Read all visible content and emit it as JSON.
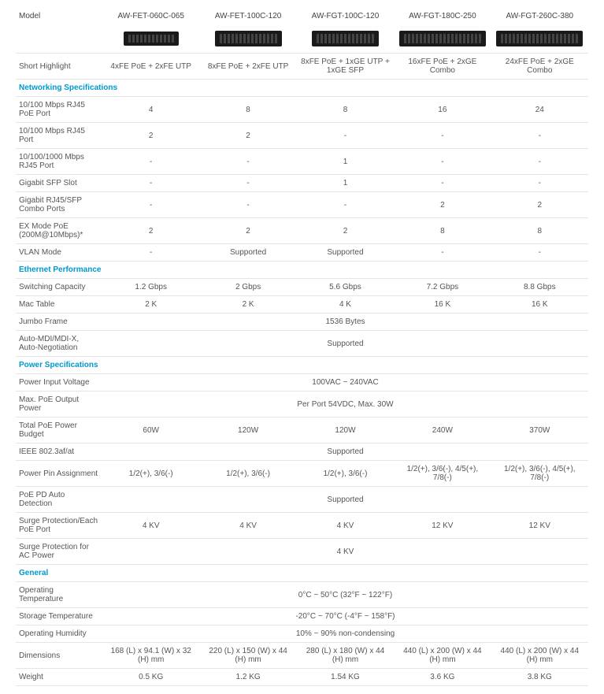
{
  "header": {
    "model_label": "Model",
    "models": [
      "AW-FET-060C-065",
      "AW-FET-100C-120",
      "AW-FGT-100C-120",
      "AW-FGT-180C-250",
      "AW-FGT-260C-380"
    ],
    "switch_sizes": [
      "sz-small",
      "sz-medium",
      "sz-medium",
      "sz-large",
      "sz-large"
    ]
  },
  "short_highlight": {
    "label": "Short Highlight",
    "values": [
      "4xFE PoE + 2xFE UTP",
      "8xFE PoE + 2xFE UTP",
      "8xFE PoE + 1xGE UTP + 1xGE SFP",
      "16xFE PoE + 2xGE Combo",
      "24xFE PoE + 2xGE Combo"
    ]
  },
  "sections": [
    {
      "title": "Networking Specifications",
      "rows": [
        {
          "label": "10/100 Mbps RJ45 PoE Port",
          "values": [
            "4",
            "8",
            "8",
            "16",
            "24"
          ]
        },
        {
          "label": "10/100 Mbps RJ45 Port",
          "values": [
            "2",
            "2",
            "-",
            "-",
            "-"
          ]
        },
        {
          "label": "10/100/1000 Mbps RJ45 Port",
          "values": [
            "-",
            "-",
            "1",
            "-",
            "-"
          ]
        },
        {
          "label": "Gigabit SFP Slot",
          "values": [
            "-",
            "-",
            "1",
            "-",
            "-"
          ]
        },
        {
          "label": "Gigabit RJ45/SFP Combo Ports",
          "values": [
            "-",
            "-",
            "-",
            "2",
            "2"
          ]
        },
        {
          "label": "EX Mode PoE (200M@10Mbps)*",
          "values": [
            "2",
            "2",
            "2",
            "8",
            "8"
          ]
        },
        {
          "label": "VLAN Mode",
          "values": [
            "-",
            "Supported",
            "Supported",
            "-",
            "-"
          ]
        }
      ]
    },
    {
      "title": "Ethernet Performance",
      "rows": [
        {
          "label": "Switching Capacity",
          "values": [
            "1.2 Gbps",
            "2 Gbps",
            "5.6 Gbps",
            "7.2 Gbps",
            "8.8 Gbps"
          ]
        },
        {
          "label": "Mac Table",
          "values": [
            "2 K",
            "2 K",
            "4 K",
            "16 K",
            "16 K"
          ]
        },
        {
          "label": "Jumbo Frame",
          "span": "1536 Bytes"
        },
        {
          "label": "Auto-MDI/MDI-X, Auto-Negotiation",
          "span": "Supported"
        }
      ]
    },
    {
      "title": "Power Specifications",
      "rows": [
        {
          "label": "Power Input Voltage",
          "span": "100VAC ~ 240VAC"
        },
        {
          "label": "Max. PoE Output Power",
          "span": "Per Port 54VDC, Max. 30W"
        },
        {
          "label": "Total PoE Power Budget",
          "values": [
            "60W",
            "120W",
            "120W",
            "240W",
            "370W"
          ]
        },
        {
          "label": "IEEE 802.3af/at",
          "span": "Supported"
        },
        {
          "label": "Power Pin Assignment",
          "values": [
            "1/2(+), 3/6(-)",
            "1/2(+), 3/6(-)",
            "1/2(+), 3/6(-)",
            "1/2(+), 3/6(-), 4/5(+), 7/8(-)",
            "1/2(+), 3/6(-), 4/5(+), 7/8(-)"
          ]
        },
        {
          "label": "PoE PD Auto Detection",
          "span": "Supported"
        },
        {
          "label": "Surge Protection/Each PoE Port",
          "values": [
            "4 KV",
            "4 KV",
            "4 KV",
            "12 KV",
            "12 KV"
          ]
        },
        {
          "label": "Surge Protection for AC Power",
          "span": "4 KV"
        }
      ]
    },
    {
      "title": "General",
      "rows": [
        {
          "label": "Operating Temperature",
          "span": "0°C ~ 50°C (32°F ~ 122°F)"
        },
        {
          "label": "Storage Temperature",
          "span": "-20°C ~ 70°C (-4°F ~ 158°F)"
        },
        {
          "label": "Operating Humidity",
          "span": "10% ~ 90% non-condensing"
        },
        {
          "label": "Dimensions",
          "values": [
            "168 (L) x 94.1 (W) x 32 (H) mm",
            "220 (L) x 150 (W) x 44 (H) mm",
            "280 (L) x 180 (W) x 44 (H) mm",
            "440 (L) x 200 (W) x 44 (H) mm",
            "440 (L) x 200 (W) x 44 (H) mm"
          ]
        },
        {
          "label": "Weight",
          "values": [
            "0.5 KG",
            "1.2 KG",
            "1.54 KG",
            "3.6 KG",
            "3.8 KG"
          ]
        }
      ]
    }
  ]
}
